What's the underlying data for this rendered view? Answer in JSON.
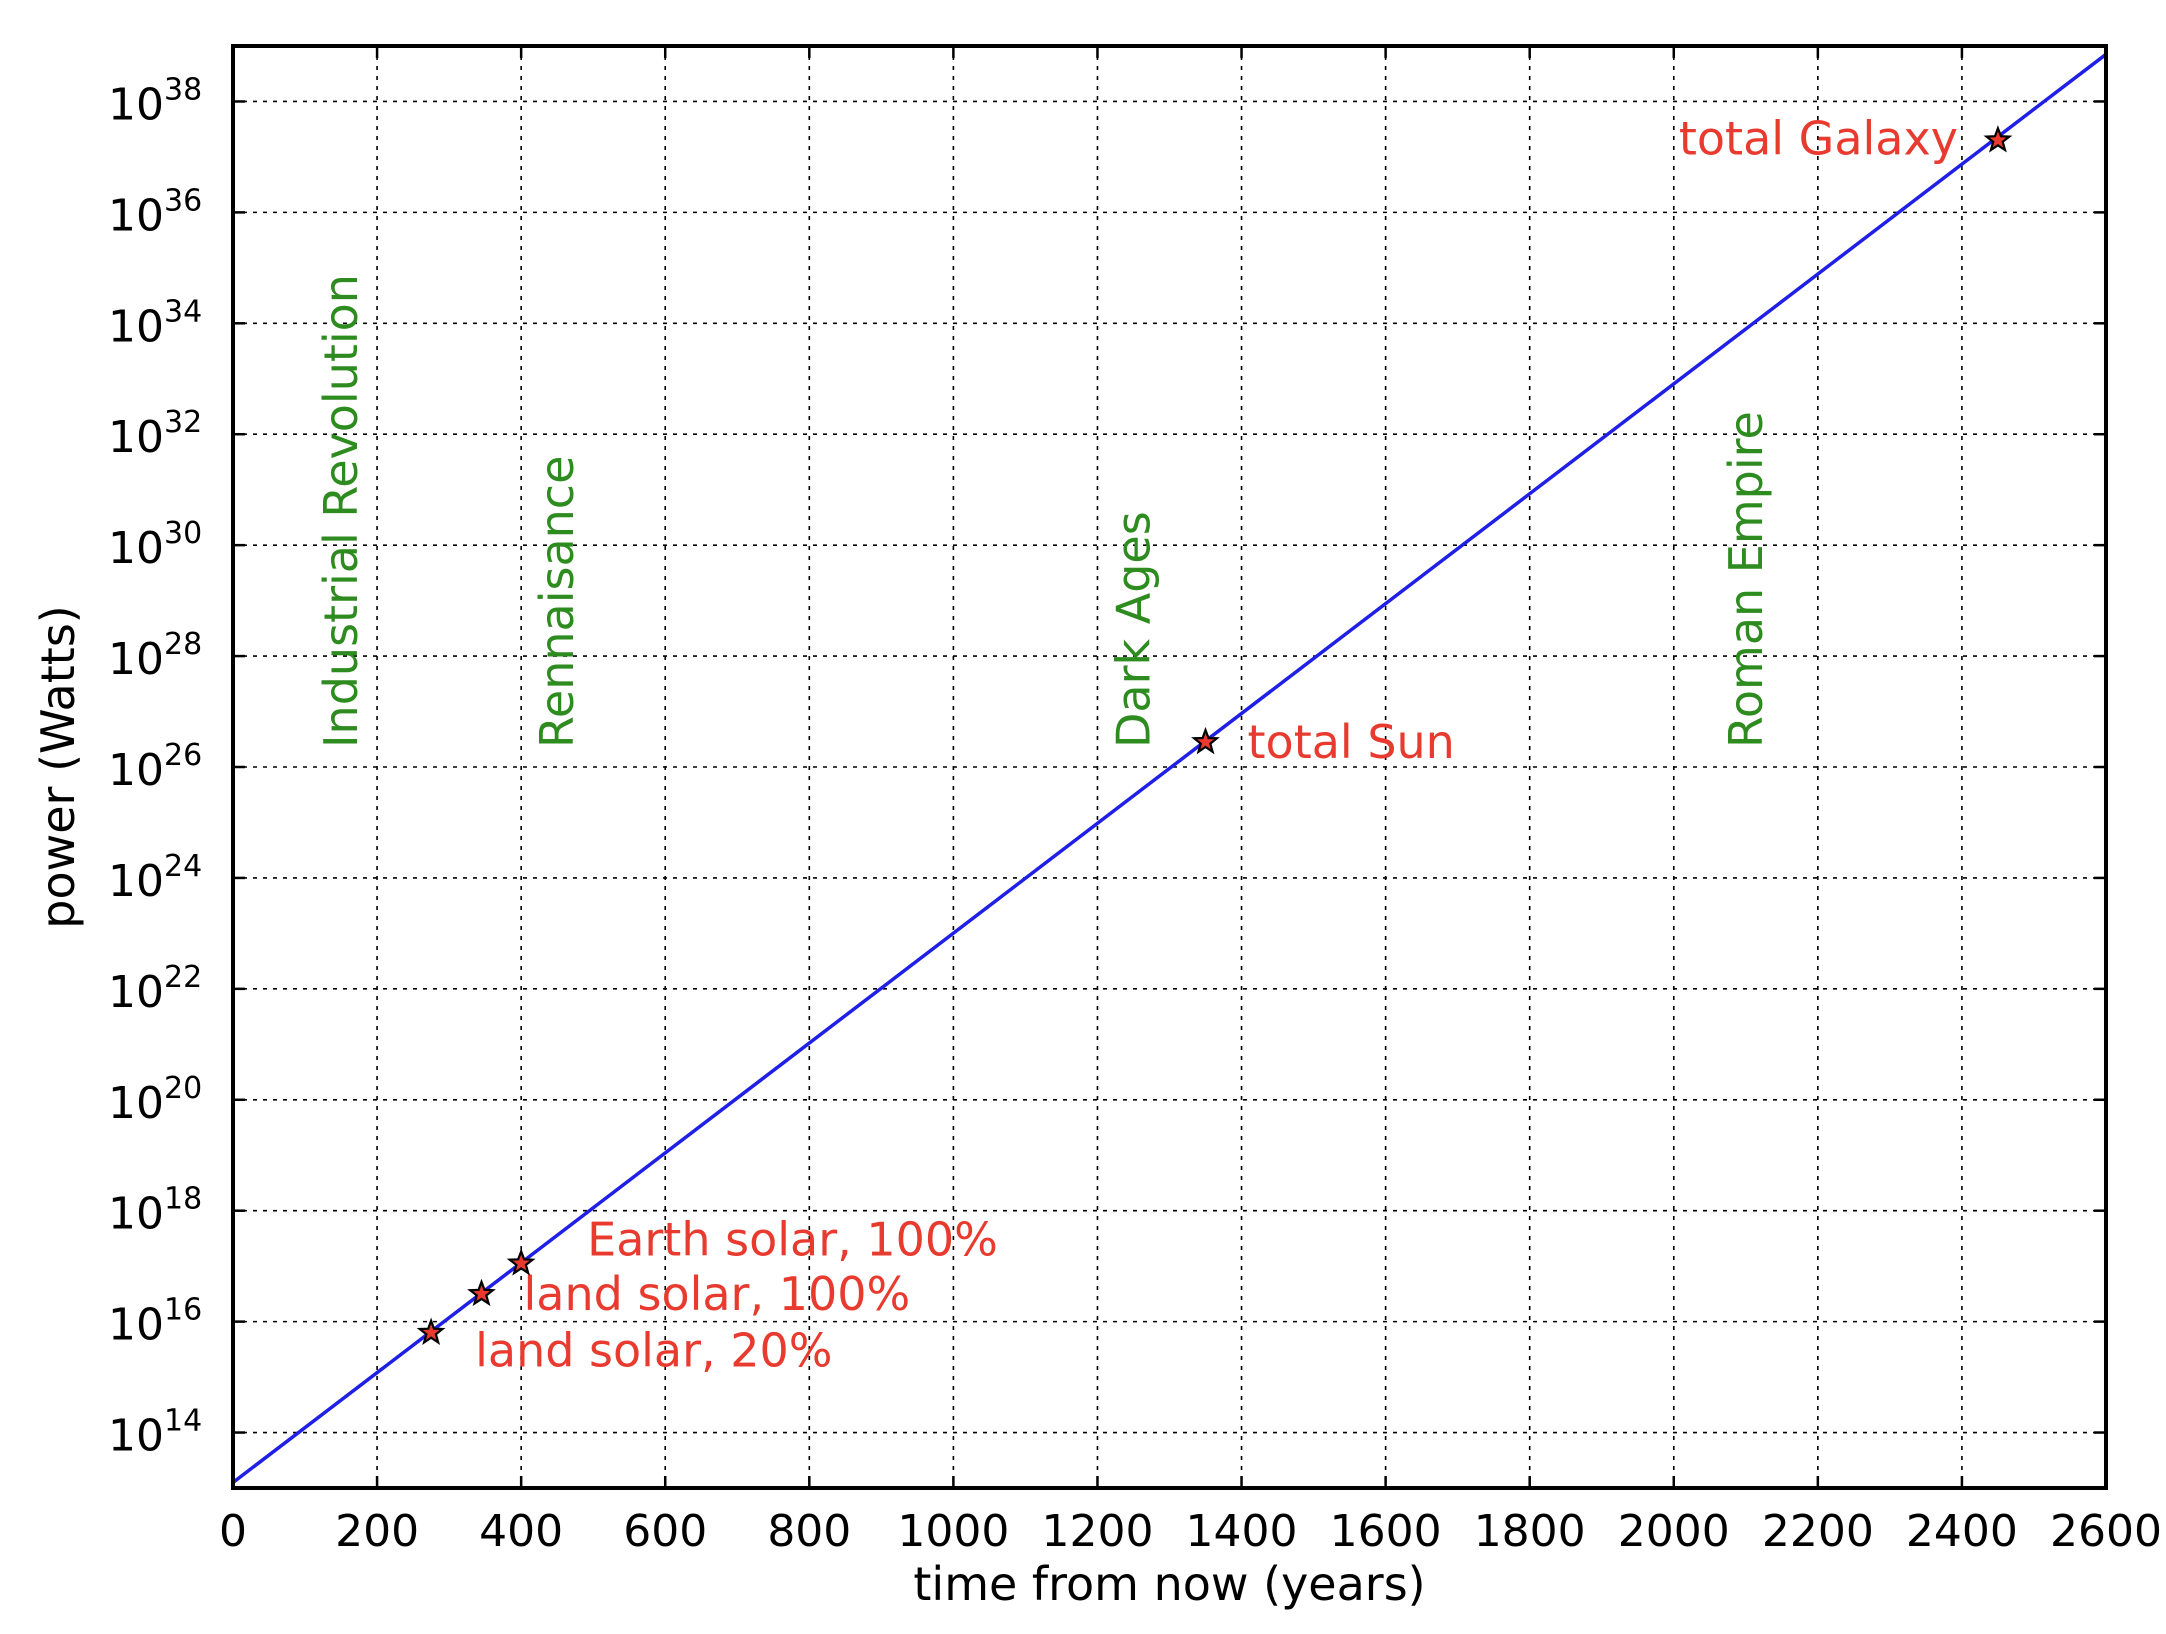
{
  "chart_data": {
    "type": "line",
    "xlabel": "time from now (years)",
    "ylabel": "power (Watts)",
    "xlim": [
      0,
      2600
    ],
    "ylim_log10": [
      13,
      39
    ],
    "yscale": "log",
    "grid": true,
    "x_ticks": [
      0,
      200,
      400,
      600,
      800,
      1000,
      1200,
      1400,
      1600,
      1800,
      2000,
      2200,
      2400,
      2600
    ],
    "y_ticks": [
      {
        "base": "10",
        "exp": "14",
        "log10": 14
      },
      {
        "base": "10",
        "exp": "16",
        "log10": 16
      },
      {
        "base": "10",
        "exp": "18",
        "log10": 18
      },
      {
        "base": "10",
        "exp": "20",
        "log10": 20
      },
      {
        "base": "10",
        "exp": "22",
        "log10": 22
      },
      {
        "base": "10",
        "exp": "24",
        "log10": 24
      },
      {
        "base": "10",
        "exp": "26",
        "log10": 26
      },
      {
        "base": "10",
        "exp": "28",
        "log10": 28
      },
      {
        "base": "10",
        "exp": "30",
        "log10": 30
      },
      {
        "base": "10",
        "exp": "32",
        "log10": 32
      },
      {
        "base": "10",
        "exp": "34",
        "log10": 34
      },
      {
        "base": "10",
        "exp": "36",
        "log10": 36
      },
      {
        "base": "10",
        "exp": "38",
        "log10": 38
      }
    ],
    "series": [
      {
        "color": "#1f1fe6",
        "x": [
          0,
          2600
        ],
        "y_log10": [
          13.1,
          38.85
        ]
      }
    ],
    "points": [
      {
        "label": "land solar, 20%",
        "x": 275,
        "y_log10": 15.8,
        "label_anchor": "below-right"
      },
      {
        "label": "land solar, 100%",
        "x": 345,
        "y_log10": 16.5,
        "label_anchor": "right"
      },
      {
        "label": "Earth solar, 100%",
        "x": 400,
        "y_log10": 17.05,
        "label_anchor": "above-right"
      },
      {
        "label": "total Sun",
        "x": 1350,
        "y_log10": 26.45,
        "label_anchor": "right"
      },
      {
        "label": "total Galaxy",
        "x": 2450,
        "y_log10": 37.3,
        "label_anchor": "left"
      }
    ],
    "point_color": "#e83a2e",
    "eras": [
      {
        "label": "Industrial Revolution",
        "x": 150
      },
      {
        "label": "Rennaisance",
        "x": 450
      },
      {
        "label": "Dark Ages",
        "x": 1250
      },
      {
        "label": "Roman Empire",
        "x": 2100
      }
    ],
    "era_color": "#2e8b1f"
  }
}
